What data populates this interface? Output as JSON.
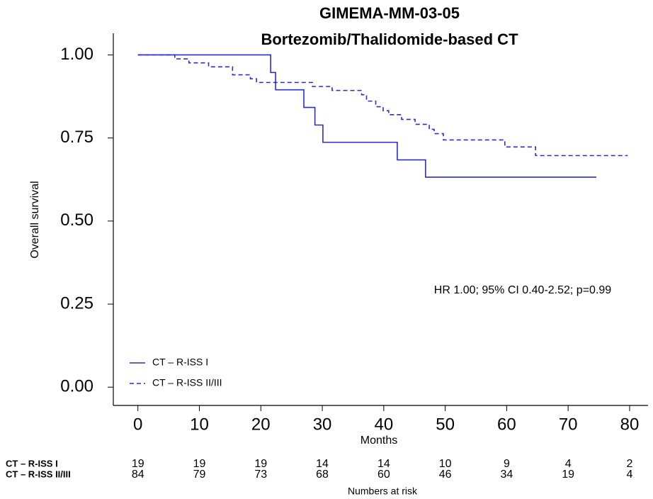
{
  "chart_data": {
    "type": "step",
    "title": "GIMEMA-MM-03-05",
    "subtitle": "Bortezomib/Thalidomide-based CT",
    "x_label": "Months",
    "y_label": "Overall survival",
    "annotation": "HR 1.00; 95% CI 0.40-2.52; p=0.99",
    "xlim": [
      -4,
      83
    ],
    "ylim": [
      -0.055,
      1.065
    ],
    "xticks": [
      0,
      10,
      20,
      30,
      40,
      50,
      60,
      70,
      80
    ],
    "yticks": [
      {
        "value": 0,
        "label": "0.00"
      },
      {
        "value": 0.25,
        "label": "0.25"
      },
      {
        "value": 0.5,
        "label": "0.50"
      },
      {
        "value": 0.75,
        "label": "0.75"
      },
      {
        "value": 1,
        "label": "1.00"
      }
    ],
    "legend": "lower-left",
    "series": [
      {
        "name": "CT – R-ISS I",
        "color": "#2b2bd9",
        "dash": "solid",
        "x": [
          0,
          21.6,
          22.4,
          27.0,
          28.8,
          30.1,
          42.2,
          46.8,
          74.6
        ],
        "values": [
          1.0,
          0.947,
          0.895,
          0.842,
          0.789,
          0.737,
          0.684,
          0.632,
          0.632
        ]
      },
      {
        "name": "CT – R-ISS II/III",
        "color": "#2b2bd9",
        "dash": "dashed",
        "x": [
          0,
          6.0,
          8.3,
          11.5,
          15.4,
          18.3,
          19.3,
          28.4,
          31.6,
          36.4,
          37.2,
          38.7,
          39.9,
          40.8,
          42.9,
          45.1,
          47.4,
          48.2,
          49.7,
          59.7,
          64.7,
          79.7
        ],
        "values": [
          1.0,
          0.988,
          0.976,
          0.964,
          0.94,
          0.928,
          0.917,
          0.905,
          0.893,
          0.88,
          0.861,
          0.844,
          0.832,
          0.82,
          0.806,
          0.791,
          0.776,
          0.763,
          0.744,
          0.723,
          0.697,
          0.697
        ]
      }
    ],
    "at_risk": {
      "title": "Numbers at risk",
      "rows": [
        {
          "name": "CT – R-ISS I",
          "values": [
            19,
            19,
            19,
            14,
            14,
            10,
            9,
            4,
            2
          ]
        },
        {
          "name": "CT – R-ISS II/III",
          "values": [
            84,
            79,
            73,
            68,
            60,
            46,
            34,
            19,
            4
          ]
        }
      ]
    }
  }
}
